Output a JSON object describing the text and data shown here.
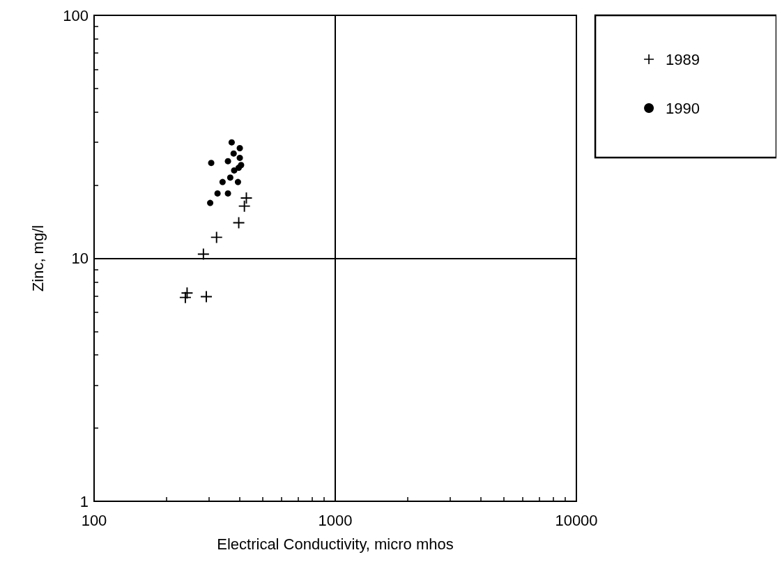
{
  "chart_data": {
    "type": "scatter",
    "xlabel": "Electrical Conductivity, micro mhos",
    "ylabel": "Zinc, mg/l",
    "log": "xy",
    "xlim": [
      100,
      10000
    ],
    "xticks": [
      100,
      1000,
      10000
    ],
    "ylim": [
      1,
      100
    ],
    "yticks": [
      1,
      10,
      100
    ],
    "grid": true,
    "legend": "top right",
    "series": [
      {
        "name": "1989",
        "color": "#000000",
        "marker": "cross",
        "x": [
          428,
          420,
          398,
          322,
          284,
          243,
          239,
          292
        ],
        "values": [
          17.7,
          16.4,
          14.0,
          12.2,
          10.4,
          7.2,
          6.9,
          6.95
        ]
      },
      {
        "name": "1990",
        "color": "#000000",
        "marker": "circle",
        "x": [
          372,
          402,
          379,
          402,
          306,
          359,
          407,
          398,
          381,
          367,
          341,
          395,
          325,
          359,
          303
        ],
        "values": [
          30.0,
          28.4,
          27.0,
          25.9,
          24.7,
          25.1,
          24.2,
          23.6,
          23.0,
          21.5,
          20.6,
          20.6,
          18.5,
          18.5,
          16.9
        ]
      }
    ]
  }
}
